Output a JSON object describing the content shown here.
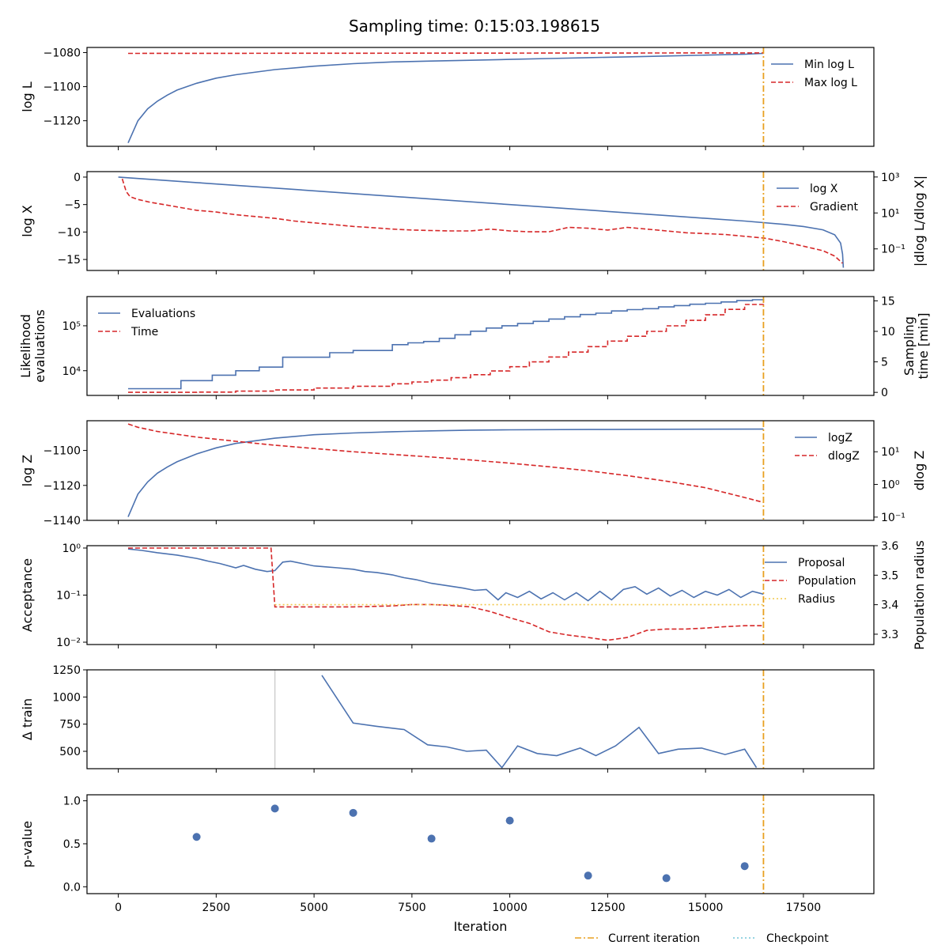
{
  "title": "Sampling time: 0:15:03.198615",
  "colors": {
    "blue": "#4c72b0",
    "red": "#d62728",
    "orange": "#e8a020",
    "gold": "#f2c94c",
    "cyan": "#74c6d9",
    "grey": "#cfcfcf"
  },
  "footer_legend": [
    {
      "label": "Current iteration",
      "style": "dashdot",
      "color": "#e8a020"
    },
    {
      "label": "Checkpoint",
      "style": "dotted",
      "color": "#74c6d9"
    }
  ],
  "chart_data": [
    {
      "id": "logl",
      "type": "line",
      "ylabel": "log L",
      "xlim": [
        -800,
        19300
      ],
      "ylim": [
        -1135,
        -1077
      ],
      "yticks": [
        -1080,
        -1100,
        -1120
      ],
      "current_iteration": 16480,
      "legend": [
        "Min log L",
        "Max log L"
      ],
      "series": [
        {
          "name": "Min log L",
          "style": "solid",
          "color": "#4c72b0",
          "x": [
            250,
            500,
            750,
            1000,
            1250,
            1500,
            2000,
            2500,
            3000,
            4000,
            5000,
            6000,
            7000,
            8000,
            9000,
            10000,
            11000,
            12000,
            13000,
            14000,
            15000,
            16000,
            16480
          ],
          "y": [
            -1133,
            -1120,
            -1113,
            -1108.5,
            -1105,
            -1102,
            -1098,
            -1095,
            -1093,
            -1090,
            -1088,
            -1086.5,
            -1085.5,
            -1085,
            -1084.5,
            -1084,
            -1083.5,
            -1083,
            -1082.5,
            -1082,
            -1081.5,
            -1081,
            -1080.5
          ]
        },
        {
          "name": "Max log L",
          "style": "dashed",
          "color": "#d62728",
          "x": [
            250,
            16480
          ],
          "y": [
            -1080.5,
            -1080.2
          ]
        }
      ]
    },
    {
      "id": "logx",
      "type": "line",
      "ylabel": "log X",
      "ylabel2": "|dlog L/dlog X|",
      "xlim": [
        -800,
        19300
      ],
      "ylim": [
        -17,
        1
      ],
      "yticks": [
        0,
        -5,
        -10,
        -15
      ],
      "y2_log": true,
      "y2ticks": [
        {
          "label": "10³",
          "v": 3
        },
        {
          "label": "10¹",
          "v": 1
        },
        {
          "label": "10⁻¹",
          "v": -1
        }
      ],
      "y2lim": [
        -2.2,
        3.3
      ],
      "current_iteration": 16480,
      "legend": [
        "log X",
        "Gradient"
      ],
      "series": [
        {
          "name": "log X",
          "style": "solid",
          "color": "#4c72b0",
          "x": [
            0,
            2000,
            4000,
            6000,
            8000,
            10000,
            12000,
            14000,
            16000,
            17000,
            17500,
            18000,
            18300,
            18450,
            18500,
            18520
          ],
          "y": [
            0,
            -1,
            -2,
            -3,
            -4,
            -5,
            -6,
            -7,
            -8,
            -8.6,
            -9.0,
            -9.6,
            -10.5,
            -12,
            -14,
            -16.5
          ]
        },
        {
          "name": "Gradient",
          "style": "dashed",
          "color": "#d62728",
          "axis": "y2",
          "x": [
            100,
            200,
            300,
            500,
            800,
            1200,
            1600,
            2000,
            2500,
            3000,
            3500,
            4000,
            4500,
            5000,
            5500,
            6000,
            6500,
            7000,
            7500,
            8000,
            8500,
            9000,
            9500,
            10000,
            10500,
            11000,
            11500,
            12000,
            12500,
            13000,
            13500,
            14000,
            14500,
            15000,
            15500,
            16000,
            16500,
            17000,
            17500,
            18000,
            18300,
            18500
          ],
          "y": [
            2.9,
            2.2,
            1.9,
            1.75,
            1.6,
            1.45,
            1.3,
            1.15,
            1.05,
            0.9,
            0.8,
            0.7,
            0.55,
            0.45,
            0.35,
            0.25,
            0.18,
            0.1,
            0.05,
            0.02,
            0.0,
            0.0,
            0.1,
            0.0,
            -0.05,
            -0.05,
            0.2,
            0.15,
            0.05,
            0.2,
            0.1,
            0.0,
            -0.1,
            -0.15,
            -0.2,
            -0.3,
            -0.4,
            -0.6,
            -0.85,
            -1.1,
            -1.4,
            -1.8
          ]
        }
      ]
    },
    {
      "id": "evals",
      "type": "line",
      "ylabel": "Likelihood evaluations",
      "ylabel2": "Sampling time [min]",
      "xlim": [
        -800,
        19300
      ],
      "y_log": true,
      "ylim": [
        3.45,
        5.65
      ],
      "yticks": [
        {
          "label": "10⁵",
          "v": 5
        },
        {
          "label": "10⁴",
          "v": 4
        }
      ],
      "y2lim": [
        -0.5,
        15.7
      ],
      "y2ticks": [
        0,
        5,
        10,
        15
      ],
      "current_iteration": 16480,
      "legend": [
        "Evaluations",
        "Time"
      ],
      "series": [
        {
          "name": "Evaluations",
          "style": "step",
          "color": "#4c72b0",
          "x": [
            250,
            1400,
            1600,
            2200,
            2400,
            2800,
            3000,
            3400,
            3600,
            4200,
            5200,
            5400,
            6000,
            6600,
            7000,
            7400,
            7800,
            8200,
            8600,
            9000,
            9400,
            9800,
            10200,
            10600,
            11000,
            11400,
            11800,
            12200,
            12600,
            13000,
            13400,
            13800,
            14200,
            14600,
            15000,
            15400,
            15800,
            16200,
            16480
          ],
          "y": [
            3.6,
            3.6,
            3.78,
            3.78,
            3.9,
            3.9,
            4.0,
            4.0,
            4.08,
            4.3,
            4.3,
            4.4,
            4.45,
            4.45,
            4.58,
            4.62,
            4.65,
            4.72,
            4.8,
            4.88,
            4.95,
            5.0,
            5.05,
            5.1,
            5.15,
            5.2,
            5.25,
            5.28,
            5.33,
            5.36,
            5.38,
            5.42,
            5.45,
            5.48,
            5.5,
            5.53,
            5.56,
            5.58,
            5.6
          ]
        },
        {
          "name": "Time",
          "style": "dashed-step",
          "color": "#d62728",
          "axis": "y2",
          "x": [
            250,
            1600,
            2000,
            3000,
            4000,
            5000,
            6000,
            7000,
            7500,
            8000,
            8500,
            9000,
            9500,
            10000,
            10500,
            11000,
            11500,
            12000,
            12500,
            13000,
            13500,
            14000,
            14500,
            15000,
            15500,
            16000,
            16480
          ],
          "y": [
            0,
            0,
            0.05,
            0.2,
            0.4,
            0.7,
            1.0,
            1.4,
            1.7,
            2.0,
            2.4,
            2.9,
            3.5,
            4.2,
            5.0,
            5.8,
            6.6,
            7.5,
            8.4,
            9.2,
            10.0,
            10.9,
            11.8,
            12.7,
            13.6,
            14.4,
            15.0
          ]
        }
      ]
    },
    {
      "id": "logz",
      "type": "line",
      "ylabel": "log Z",
      "ylabel2": "dlog Z",
      "xlim": [
        -800,
        19300
      ],
      "ylim": [
        -1140,
        -1083
      ],
      "yticks": [
        -1100,
        -1120,
        -1140
      ],
      "y2_log": true,
      "y2lim": [
        -1.1,
        1.95
      ],
      "y2ticks": [
        {
          "label": "10¹",
          "v": 1
        },
        {
          "label": "10⁰",
          "v": 0
        },
        {
          "label": "10⁻¹",
          "v": -1
        }
      ],
      "current_iteration": 16480,
      "legend": [
        "logZ",
        "dlogZ"
      ],
      "series": [
        {
          "name": "logZ",
          "style": "solid",
          "color": "#4c72b0",
          "x": [
            250,
            500,
            750,
            1000,
            1250,
            1500,
            2000,
            2500,
            3000,
            4000,
            5000,
            6000,
            7000,
            8000,
            9000,
            10000,
            12000,
            14000,
            16480
          ],
          "y": [
            -1138,
            -1125,
            -1118,
            -1113,
            -1109.5,
            -1106.5,
            -1102,
            -1098.5,
            -1096,
            -1093,
            -1091,
            -1090,
            -1089.3,
            -1088.8,
            -1088.4,
            -1088.2,
            -1088,
            -1087.9,
            -1087.8
          ]
        },
        {
          "name": "dlogZ",
          "style": "dashed",
          "color": "#d62728",
          "axis": "y2",
          "x": [
            250,
            500,
            1000,
            2000,
            3000,
            4000,
            5000,
            6000,
            7000,
            8000,
            9000,
            10000,
            11000,
            12000,
            13000,
            14000,
            15000,
            16000,
            16480
          ],
          "y": [
            1.85,
            1.75,
            1.62,
            1.45,
            1.32,
            1.2,
            1.1,
            1.0,
            0.92,
            0.84,
            0.75,
            0.65,
            0.54,
            0.42,
            0.27,
            0.1,
            -0.1,
            -0.4,
            -0.55
          ]
        }
      ]
    },
    {
      "id": "accept",
      "type": "line",
      "ylabel": "Acceptance",
      "ylabel2": "Population radius",
      "xlim": [
        -800,
        19300
      ],
      "y_log": true,
      "ylim": [
        -2.05,
        0.05
      ],
      "yticks": [
        {
          "label": "10⁰",
          "v": 0
        },
        {
          "label": "10⁻¹",
          "v": -1
        },
        {
          "label": "10⁻²",
          "v": -2
        }
      ],
      "y2lim": [
        3.265,
        3.6
      ],
      "y2ticks": [
        3.6,
        3.5,
        3.4,
        3.3
      ],
      "current_iteration": 16480,
      "legend": [
        "Proposal",
        "Population",
        "Radius"
      ],
      "series": [
        {
          "name": "Proposal",
          "style": "solid",
          "color": "#4c72b0",
          "x": [
            250,
            600,
            1000,
            1500,
            2000,
            2300,
            2600,
            3000,
            3200,
            3500,
            3800,
            4000,
            4200,
            4400,
            4700,
            5000,
            5300,
            5600,
            6000,
            6300,
            6600,
            7000,
            7300,
            7600,
            8000,
            8400,
            8800,
            9100,
            9400,
            9700,
            9900,
            10200,
            10500,
            10800,
            11100,
            11400,
            11700,
            12000,
            12300,
            12600,
            12900,
            13200,
            13500,
            13800,
            14100,
            14400,
            14700,
            15000,
            15300,
            15600,
            15900,
            16200,
            16480
          ],
          "y": [
            -0.02,
            -0.05,
            -0.1,
            -0.15,
            -0.22,
            -0.28,
            -0.33,
            -0.42,
            -0.37,
            -0.45,
            -0.5,
            -0.48,
            -0.3,
            -0.28,
            -0.33,
            -0.38,
            -0.4,
            -0.42,
            -0.45,
            -0.5,
            -0.52,
            -0.57,
            -0.63,
            -0.67,
            -0.75,
            -0.8,
            -0.85,
            -0.9,
            -0.88,
            -1.1,
            -0.95,
            -1.05,
            -0.92,
            -1.08,
            -0.95,
            -1.1,
            -0.95,
            -1.12,
            -0.92,
            -1.1,
            -0.88,
            -0.82,
            -0.98,
            -0.85,
            -1.02,
            -0.9,
            -1.05,
            -0.92,
            -1.0,
            -0.88,
            -1.05,
            -0.92,
            -0.98
          ]
        },
        {
          "name": "Population",
          "style": "dashed",
          "color": "#d62728",
          "x": [
            250,
            3900,
            4000,
            5000,
            6000,
            7000,
            7500,
            8000,
            8500,
            9000,
            9500,
            10000,
            10500,
            11000,
            11500,
            12000,
            12500,
            13000,
            13500,
            14000,
            14500,
            15000,
            15500,
            16000,
            16480
          ],
          "y": [
            0.0,
            0.0,
            -1.25,
            -1.25,
            -1.25,
            -1.23,
            -1.2,
            -1.2,
            -1.22,
            -1.25,
            -1.35,
            -1.48,
            -1.6,
            -1.78,
            -1.85,
            -1.9,
            -1.96,
            -1.9,
            -1.75,
            -1.72,
            -1.72,
            -1.7,
            -1.67,
            -1.65,
            -1.65
          ]
        },
        {
          "name": "Radius",
          "style": "dotted",
          "color": "#f2c94c",
          "axis": "y2",
          "x": [
            4000,
            16480
          ],
          "y": [
            3.4,
            3.4
          ]
        }
      ]
    },
    {
      "id": "train",
      "type": "line",
      "ylabel": "Δ train",
      "xlim": [
        -800,
        19300
      ],
      "ylim": [
        340,
        1250
      ],
      "yticks": [
        1250,
        1000,
        750,
        500
      ],
      "current_iteration": 16480,
      "checkpoint_line": 4000,
      "series": [
        {
          "name": "",
          "style": "solid",
          "color": "#4c72b0",
          "x": [
            5200,
            6000,
            6600,
            7300,
            7900,
            8400,
            8900,
            9400,
            9800,
            10200,
            10700,
            11200,
            11800,
            12200,
            12700,
            13300,
            13800,
            14300,
            14900,
            15500,
            16000,
            16300
          ],
          "y": [
            1200,
            760,
            730,
            700,
            560,
            540,
            500,
            510,
            350,
            550,
            480,
            460,
            530,
            460,
            550,
            720,
            480,
            520,
            530,
            470,
            520,
            350
          ]
        }
      ]
    },
    {
      "id": "pvalue",
      "type": "scatter",
      "ylabel": "p-value",
      "xlabel": "Iteration",
      "xlim": [
        -800,
        19300
      ],
      "ylim": [
        -0.08,
        1.07
      ],
      "yticks": [
        "0.0",
        "0.5",
        "1.0"
      ],
      "xticks": [
        0,
        2500,
        5000,
        7500,
        10000,
        12500,
        15000,
        17500
      ],
      "current_iteration": 16480,
      "series": [
        {
          "name": "",
          "color": "#4c72b0",
          "x": [
            2000,
            4000,
            6000,
            8000,
            10000,
            12000,
            14000,
            16000
          ],
          "y": [
            0.58,
            0.91,
            0.86,
            0.56,
            0.77,
            0.13,
            0.1,
            0.24
          ]
        }
      ]
    }
  ]
}
